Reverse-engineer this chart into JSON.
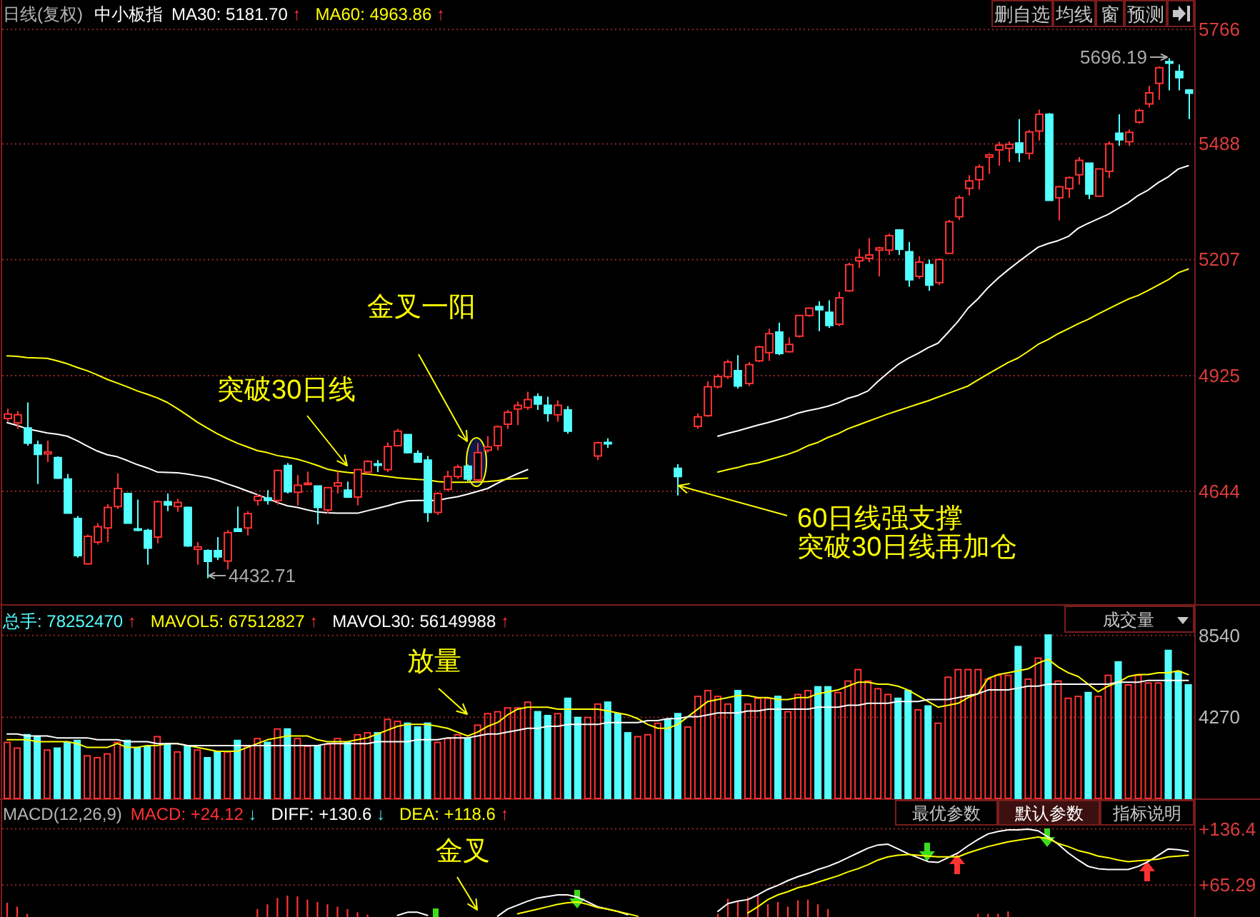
{
  "chart_data": [
    {
      "type": "candlestick",
      "title": "中小板指",
      "subtitle": "日线(复权)",
      "categories": [
        null,
        null,
        null,
        null,
        null,
        null,
        null,
        null,
        null,
        null,
        null,
        null,
        null,
        null,
        null,
        null,
        null,
        null,
        null,
        null,
        null,
        null,
        null,
        null,
        null,
        null,
        null,
        null,
        null,
        null,
        null,
        null,
        null,
        null,
        null,
        null,
        null,
        null,
        null,
        null,
        null,
        null,
        null,
        null,
        null,
        null,
        null,
        null,
        null,
        null,
        null,
        null,
        null,
        null,
        null,
        null,
        null,
        null,
        null,
        null,
        null,
        null,
        null,
        null,
        null,
        null,
        null,
        null,
        null,
        null,
        null,
        null,
        null,
        null,
        null,
        null,
        null,
        null,
        null,
        null,
        null,
        null,
        null,
        null,
        null,
        null,
        null,
        null,
        null,
        null,
        null,
        null,
        null,
        null,
        null,
        null,
        null,
        null,
        null,
        null,
        null,
        null,
        null,
        null,
        null,
        null,
        null,
        null,
        null,
        null,
        null,
        null,
        null,
        null,
        null,
        null,
        null,
        null,
        null
      ],
      "ohlc": [
        [
          4821,
          4845,
          4813,
          4832
        ],
        [
          4810,
          4839,
          4796,
          4830
        ],
        [
          4798,
          4860,
          4755,
          4761
        ],
        [
          4757,
          4767,
          4662,
          4734
        ],
        [
          4735,
          4767,
          4715,
          4740
        ],
        [
          4726,
          4729,
          4674,
          4676
        ],
        [
          4674,
          4686,
          4591,
          4591
        ],
        [
          4578,
          4584,
          4483,
          4488
        ],
        [
          4468,
          4539,
          4466,
          4535
        ],
        [
          4521,
          4567,
          4515,
          4558
        ],
        [
          4555,
          4613,
          4521,
          4605
        ],
        [
          4607,
          4688,
          4601,
          4651
        ],
        [
          4639,
          4640,
          4566,
          4567
        ],
        [
          4553,
          4624,
          4547,
          4550
        ],
        [
          4549,
          4553,
          4466,
          4506
        ],
        [
          4533,
          4622,
          4518,
          4619
        ],
        [
          4619,
          4639,
          4596,
          4611
        ],
        [
          4607,
          4626,
          4594,
          4617
        ],
        [
          4605,
          4607,
          4509,
          4512
        ],
        [
          4503,
          4521,
          4466,
          4509
        ],
        [
          4500,
          4503,
          4432.71,
          4474
        ],
        [
          4500,
          4533,
          4477,
          4485
        ],
        [
          4475,
          4550,
          4454,
          4544
        ],
        [
          4553,
          4607,
          4546,
          4547
        ],
        [
          4555,
          4596,
          4537,
          4590
        ],
        [
          4622,
          4637,
          4610,
          4632
        ],
        [
          4628,
          4647,
          4612,
          4622
        ],
        [
          4622,
          4697,
          4612,
          4695
        ],
        [
          4707,
          4713,
          4639,
          4643
        ],
        [
          4642,
          4684,
          4610,
          4659
        ],
        [
          4661,
          4692,
          4660,
          4664
        ],
        [
          4657,
          4657,
          4564,
          4605
        ],
        [
          4599,
          4654,
          4590,
          4653
        ],
        [
          4657,
          4692,
          4639,
          4665
        ],
        [
          4647,
          4668,
          4628,
          4630
        ],
        [
          4630,
          4697,
          4610,
          4697
        ],
        [
          4691,
          4720,
          4686,
          4717
        ],
        [
          4711,
          4720,
          4691,
          4709
        ],
        [
          4697,
          4763,
          4691,
          4753
        ],
        [
          4755,
          4796,
          4753,
          4790
        ],
        [
          4782,
          4782,
          4736,
          4738
        ],
        [
          4736,
          4744,
          4715,
          4715
        ],
        [
          4720,
          4730,
          4570,
          4593
        ],
        [
          4593,
          4642,
          4587,
          4639
        ],
        [
          4649,
          4694,
          4645,
          4680
        ],
        [
          4680,
          4709,
          4674,
          4703
        ],
        [
          4705,
          4709,
          4668,
          4674
        ],
        [
          4672,
          4761,
          4668,
          4738
        ],
        [
          4744,
          4778,
          4738,
          4752
        ],
        [
          4755,
          4804,
          4744,
          4801
        ],
        [
          4807,
          4842,
          4796,
          4836
        ],
        [
          4844,
          4862,
          4805,
          4853
        ],
        [
          4848,
          4886,
          4842,
          4867
        ],
        [
          4874,
          4882,
          4842,
          4856
        ],
        [
          4853,
          4874,
          4813,
          4833
        ],
        [
          4830,
          4865,
          4813,
          4853
        ],
        [
          4842,
          4851,
          4784,
          4790
        ],
        null,
        null,
        [
          4730,
          4765,
          4720,
          4762
        ],
        [
          4763,
          4773,
          4750,
          4760
        ],
        null,
        null,
        null,
        null,
        null,
        null,
        [
          4700,
          4710,
          4634,
          4680
        ],
        null,
        [
          4802,
          4833,
          4796,
          4825
        ],
        [
          4828,
          4911,
          4825,
          4898
        ],
        [
          4898,
          4929,
          4894,
          4923
        ],
        [
          4923,
          4964,
          4917,
          4958
        ],
        [
          4937,
          4975,
          4894,
          4900
        ],
        [
          4906,
          4958,
          4900,
          4952
        ],
        [
          4961,
          4998,
          4958,
          4995
        ],
        [
          4981,
          5039,
          4961,
          5027
        ],
        [
          5031,
          5054,
          4975,
          4979
        ],
        [
          4983,
          5018,
          4981,
          5001
        ],
        [
          5021,
          5073,
          5018,
          5071
        ],
        [
          5071,
          5091,
          5068,
          5089
        ],
        [
          5093,
          5106,
          5033,
          5085
        ],
        [
          5079,
          5108,
          5041,
          5047
        ],
        [
          5050,
          5129,
          5045,
          5114
        ],
        [
          5131,
          5199,
          5129,
          5195
        ],
        [
          5204,
          5233,
          5187,
          5212
        ],
        [
          5210,
          5259,
          5201,
          5218
        ],
        [
          5230,
          5238,
          5166,
          5235
        ],
        [
          5230,
          5270,
          5218,
          5265
        ],
        [
          5279,
          5279,
          5218,
          5232
        ],
        [
          5226,
          5250,
          5141,
          5158
        ],
        [
          5166,
          5215,
          5160,
          5201
        ],
        [
          5195,
          5207,
          5131,
          5145
        ],
        [
          5151,
          5210,
          5145,
          5207
        ],
        [
          5222,
          5303,
          5221,
          5299
        ],
        [
          5311,
          5363,
          5303,
          5357
        ],
        [
          5380,
          5412,
          5363,
          5398
        ],
        [
          5401,
          5438,
          5377,
          5432
        ],
        [
          5456,
          5465,
          5415,
          5461
        ],
        [
          5473,
          5493,
          5435,
          5485
        ],
        [
          5477,
          5494,
          5444,
          5487
        ],
        [
          5490,
          5548,
          5444,
          5467
        ],
        [
          5465,
          5522,
          5450,
          5517
        ],
        [
          5519,
          5571,
          5496,
          5560
        ],
        [
          5560,
          5563,
          5349,
          5351
        ],
        [
          5357,
          5386,
          5302,
          5384
        ],
        [
          5379,
          5409,
          5357,
          5406
        ],
        [
          5413,
          5456,
          5389,
          5448
        ],
        [
          5441,
          5441,
          5354,
          5366
        ],
        [
          5361,
          5429,
          5360,
          5427
        ],
        [
          5421,
          5494,
          5405,
          5488
        ],
        [
          5514,
          5560,
          5483,
          5498
        ],
        [
          5493,
          5523,
          5483,
          5516
        ],
        [
          5541,
          5574,
          5537,
          5569
        ],
        [
          5585,
          5629,
          5577,
          5612
        ],
        [
          5635,
          5676,
          5595,
          5673
        ],
        [
          5688,
          5696.19,
          5618,
          5684
        ],
        [
          5664,
          5681,
          5618,
          5649
        ],
        [
          5619,
          5619,
          5548,
          5611
        ]
      ],
      "colors": [
        "#ff3232",
        "#ff3232",
        "#54ffff",
        "#54ffff",
        "#ff3232",
        "#54ffff",
        "#54ffff",
        "#54ffff",
        "#ff3232",
        "#ff3232",
        "#ff3232",
        "#ff3232",
        "#54ffff",
        "#54ffff",
        "#54ffff",
        "#ff3232",
        "#54ffff",
        "#ff3232",
        "#54ffff",
        "#ff3232",
        "#54ffff",
        "#54ffff",
        "#ff3232",
        "#54ffff",
        "#ff3232",
        "#ff3232",
        "#54ffff",
        "#ff3232",
        "#54ffff",
        "#ff3232",
        "#ff3232",
        "#54ffff",
        "#ff3232",
        "#ff3232",
        "#54ffff",
        "#ff3232",
        "#ff3232",
        "#54ffff",
        "#ff3232",
        "#ff3232",
        "#54ffff",
        "#54ffff",
        "#54ffff",
        "#ff3232",
        "#ff3232",
        "#ff3232",
        "#54ffff",
        "#ff3232",
        "#ff3232",
        "#ff3232",
        "#ff3232",
        "#ff3232",
        "#ff3232",
        "#54ffff",
        "#54ffff",
        "#ff3232",
        "#54ffff",
        null,
        null,
        "#ff3232",
        "#54ffff",
        null,
        null,
        null,
        null,
        null,
        null,
        "#54ffff",
        null,
        "#ff3232",
        "#ff3232",
        "#ff3232",
        "#ff3232",
        "#54ffff",
        "#ff3232",
        "#ff3232",
        "#ff3232",
        "#54ffff",
        "#ff3232",
        "#ff3232",
        "#ff3232",
        "#54ffff",
        "#54ffff",
        "#ff3232",
        "#ff3232",
        "#ff3232",
        "#ff3232",
        "#ff3232",
        "#ff3232",
        "#54ffff",
        "#54ffff",
        "#ff3232",
        "#54ffff",
        "#ff3232",
        "#ff3232",
        "#ff3232",
        "#ff3232",
        "#ff3232",
        "#ff3232",
        "#ff3232",
        "#ff3232",
        "#54ffff",
        "#ff3232",
        "#ff3232",
        "#54ffff",
        "#ff3232",
        "#ff3232",
        "#ff3232",
        "#54ffff",
        "#ff3232",
        "#ff3232",
        "#54ffff",
        "#ff3232",
        "#ff3232",
        "#ff3232",
        "#ff3232",
        "#54ffff",
        "#54ffff",
        "#54ffff"
      ],
      "series": [
        {
          "name": "MA30: 5181.70↑",
          "type": "line",
          "color": "#ffffff",
          "values": [
            4811,
            4804,
            4796,
            4791,
            4786,
            4783,
            4778,
            4767,
            4754,
            4742,
            4733,
            4728,
            4719,
            4709,
            4701,
            4691,
            4690,
            4689,
            4686,
            4682,
            4678,
            4671,
            4662,
            4654,
            4645,
            4636,
            4627,
            4617,
            4609,
            4605,
            4599,
            4594,
            4592,
            4591,
            4591,
            4591,
            4597,
            4603,
            4609,
            4616,
            4621,
            4622,
            4622,
            4622,
            4627,
            4631,
            4637,
            4644,
            4651,
            4664,
            4676,
            4687,
            4697,
            null,
            null,
            null,
            null,
            null,
            null,
            null,
            null,
            null,
            null,
            null,
            null,
            null,
            null,
            null,
            null,
            null,
            null,
            4778,
            4785,
            4791,
            4798,
            4805,
            4811,
            4818,
            4825,
            4834,
            4840,
            4845,
            4851,
            4859,
            4870,
            4877,
            4888,
            4911,
            4932,
            4952,
            4967,
            4979,
            4993,
            5004,
            5030,
            5057,
            5089,
            5112,
            5139,
            5162,
            5182,
            5201,
            5219,
            5237,
            5246,
            5253,
            5263,
            5283,
            5295,
            5306,
            5317,
            5331,
            5345,
            5363,
            5376,
            5394,
            5408,
            5427,
            5435
          ]
        },
        {
          "name": "MA60: 4963.86↑",
          "type": "line",
          "color": "#ffff00",
          "values": [
            4973,
            4972,
            4969,
            4968,
            4967,
            4961,
            4954,
            4945,
            4937,
            4927,
            4916,
            4907,
            4898,
            4888,
            4880,
            4871,
            4860,
            4845,
            4829,
            4812,
            4798,
            4784,
            4772,
            4761,
            4752,
            4743,
            4738,
            4731,
            4727,
            4722,
            4715,
            4707,
            4698,
            4693,
            4690,
            4688,
            4686,
            4683,
            4680,
            4677,
            4675,
            4673,
            4672,
            4668,
            4666,
            4666,
            4666,
            4667,
            4668,
            4670,
            4674,
            4675,
            4676,
            null,
            null,
            null,
            null,
            null,
            null,
            null,
            null,
            null,
            null,
            null,
            null,
            null,
            null,
            null,
            null,
            null,
            null,
            4691,
            4697,
            4702,
            4709,
            4713,
            4720,
            4727,
            4734,
            4743,
            4755,
            4763,
            4775,
            4784,
            4796,
            4805,
            4814,
            4823,
            4832,
            4840,
            4848,
            4856,
            4864,
            4873,
            4882,
            4891,
            4900,
            4915,
            4929,
            4943,
            4957,
            4968,
            4984,
            5001,
            5013,
            5027,
            5039,
            5051,
            5062,
            5075,
            5087,
            5099,
            5111,
            5120,
            5132,
            5145,
            5158,
            5175,
            5184
          ]
        }
      ],
      "ylim": [
        4370,
        5775
      ],
      "yticks": [
        4644,
        4925,
        5207,
        5488,
        5766
      ],
      "grid": "y",
      "legend": "top left",
      "annotations": [
        "金叉一阳",
        "突破30日线",
        "60日线强支撑",
        "突破30日线再加仓",
        "4432.71",
        "5696.19",
        "删自选",
        "均线",
        "窗",
        "预测"
      ]
    },
    {
      "type": "bar",
      "categories": [
        null,
        null,
        null,
        null,
        null,
        null,
        null,
        null,
        null,
        null,
        null,
        null,
        null,
        null,
        null,
        null,
        null,
        null,
        null,
        null,
        null,
        null,
        null,
        null,
        null,
        null,
        null,
        null,
        null,
        null,
        null,
        null,
        null,
        null,
        null,
        null,
        null,
        null,
        null,
        null,
        null,
        null,
        null,
        null,
        null,
        null,
        null,
        null,
        null,
        null,
        null,
        null,
        null,
        null,
        null,
        null,
        null,
        null,
        null,
        null,
        null,
        null,
        null,
        null,
        null,
        null,
        null,
        null,
        null,
        null,
        null,
        null,
        null,
        null,
        null,
        null,
        null,
        null,
        null,
        null,
        null,
        null,
        null,
        null,
        null,
        null,
        null,
        null,
        null,
        null,
        null,
        null,
        null,
        null,
        null,
        null,
        null,
        null,
        null,
        null,
        null,
        null,
        null,
        null,
        null,
        null,
        null,
        null,
        null,
        null,
        null,
        null,
        null,
        null,
        null,
        null,
        null,
        null,
        null
      ],
      "series": [
        {
          "name": "总手: 78252470↑",
          "type": "bar",
          "color": "#54ffff",
          "colors": [
            "#ff3232",
            "#ff3232",
            "#54ffff",
            "#54ffff",
            "#ff3232",
            "#54ffff",
            "#54ffff",
            "#54ffff",
            "#ff3232",
            "#ff3232",
            "#ff3232",
            "#ff3232",
            "#54ffff",
            "#54ffff",
            "#54ffff",
            "#ff3232",
            "#54ffff",
            "#ff3232",
            "#54ffff",
            "#ff3232",
            "#54ffff",
            "#54ffff",
            "#ff3232",
            "#54ffff",
            "#ff3232",
            "#ff3232",
            "#54ffff",
            "#ff3232",
            "#54ffff",
            "#ff3232",
            "#ff3232",
            "#54ffff",
            "#ff3232",
            "#ff3232",
            "#54ffff",
            "#ff3232",
            "#ff3232",
            "#54ffff",
            "#ff3232",
            "#ff3232",
            "#54ffff",
            "#54ffff",
            "#54ffff",
            "#ff3232",
            "#ff3232",
            "#ff3232",
            "#54ffff",
            "#ff3232",
            "#ff3232",
            "#ff3232",
            "#ff3232",
            "#ff3232",
            "#ff3232",
            "#54ffff",
            "#54ffff",
            "#ff3232",
            "#54ffff",
            "#54ffff",
            "#ff3232",
            "#ff3232",
            "#54ffff",
            "#54ffff",
            "#54ffff",
            "#ff3232",
            "#ff3232",
            "#ff3232",
            "#54ffff",
            "#54ffff",
            "#ff3232",
            "#ff3232",
            "#ff3232",
            "#ff3232",
            "#ff3232",
            "#54ffff",
            "#ff3232",
            "#ff3232",
            "#ff3232",
            "#54ffff",
            "#ff3232",
            "#ff3232",
            "#ff3232",
            "#54ffff",
            "#54ffff",
            "#ff3232",
            "#ff3232",
            "#ff3232",
            "#ff3232",
            "#ff3232",
            "#ff3232",
            "#54ffff",
            "#54ffff",
            "#ff3232",
            "#54ffff",
            "#ff3232",
            "#ff3232",
            "#ff3232",
            "#ff3232",
            "#ff3232",
            "#ff3232",
            "#ff3232",
            "#ff3232",
            "#54ffff",
            "#ff3232",
            "#ff3232",
            "#54ffff",
            "#ff3232",
            "#ff3232",
            "#ff3232",
            "#54ffff",
            "#ff3232",
            "#ff3232",
            "#54ffff",
            "#ff3232",
            "#ff3232",
            "#ff3232",
            "#ff3232",
            "#54ffff",
            "#54ffff",
            "#54ffff"
          ],
          "values": [
            3000,
            2700,
            3400,
            3300,
            2600,
            2700,
            3000,
            3100,
            2300,
            2200,
            2400,
            3000,
            3100,
            2700,
            2800,
            3300,
            2900,
            2500,
            2800,
            2600,
            2200,
            2500,
            2500,
            3100,
            2800,
            3200,
            3000,
            3700,
            3700,
            3200,
            2800,
            2800,
            2900,
            3200,
            3000,
            3400,
            3500,
            3500,
            4200,
            4100,
            4000,
            3800,
            4000,
            3000,
            3200,
            3400,
            3200,
            3900,
            4500,
            4600,
            4800,
            4800,
            5100,
            4600,
            4400,
            4500,
            5300,
            4300,
            4300,
            5000,
            5100,
            4500,
            3500,
            3300,
            3400,
            4000,
            4200,
            4500,
            3800,
            5400,
            5700,
            5400,
            5000,
            5700,
            5000,
            5300,
            5300,
            5400,
            4600,
            5500,
            5700,
            5900,
            5900,
            5600,
            6200,
            6800,
            6200,
            5800,
            5500,
            5300,
            5700,
            4700,
            4900,
            4000,
            6400,
            6800,
            6800,
            6800,
            6300,
            6500,
            6500,
            8000,
            6300,
            7400,
            8600,
            6200,
            5300,
            5400,
            5600,
            5400,
            6500,
            7200,
            6000,
            6500,
            6100,
            6100,
            7800,
            6700,
            6000
          ]
        },
        {
          "name": "MAVOL5: 67512827↑",
          "type": "line",
          "color": "#ffff00",
          "values": [
            3100,
            3100,
            3100,
            3000,
            3000,
            3000,
            3000,
            2900,
            2700,
            2700,
            2700,
            2900,
            2700,
            2700,
            2800,
            2800,
            2900,
            2900,
            2800,
            2700,
            2600,
            2500,
            2500,
            2500,
            2700,
            2900,
            3100,
            3200,
            3300,
            3300,
            3300,
            3100,
            3000,
            3000,
            3000,
            3100,
            3200,
            3400,
            3600,
            3800,
            3900,
            3900,
            3900,
            3800,
            3700,
            3500,
            3300,
            3500,
            3800,
            4000,
            4400,
            4700,
            4800,
            4800,
            4800,
            4700,
            4700,
            4700,
            4700,
            4700,
            4600,
            4500,
            4400,
            4200,
            3900,
            3700,
            3700,
            3900,
            4300,
            4700,
            5100,
            5200,
            5300,
            5400,
            5400,
            5300,
            5300,
            5200,
            5200,
            5300,
            5300,
            5500,
            5600,
            5700,
            5900,
            6100,
            6100,
            6000,
            6000,
            5900,
            5700,
            5400,
            5100,
            4800,
            4900,
            5000,
            5300,
            5500,
            6300,
            6500,
            6600,
            6700,
            6800,
            7100,
            7300,
            6900,
            6600,
            6400,
            6000,
            5600,
            5900,
            6100,
            6400,
            6500,
            6500,
            6600,
            6600,
            6700,
            6500
          ]
        },
        {
          "name": "MAVOL30: 56149988↑",
          "type": "line",
          "color": "#ffffff",
          "values": [
            3400,
            3400,
            3300,
            3300,
            3300,
            3200,
            3200,
            3200,
            3200,
            3100,
            3100,
            3100,
            3000,
            3000,
            3000,
            2900,
            2900,
            2900,
            2800,
            2800,
            2800,
            2800,
            2800,
            2800,
            2800,
            2800,
            2800,
            2800,
            2800,
            2800,
            2800,
            2800,
            2900,
            2900,
            2900,
            2900,
            2900,
            3000,
            3000,
            3000,
            3000,
            3100,
            3100,
            3100,
            3200,
            3200,
            3200,
            3300,
            3400,
            3400,
            3500,
            3600,
            3700,
            3700,
            3800,
            3800,
            3900,
            3900,
            3900,
            3900,
            4000,
            4000,
            4000,
            4000,
            4100,
            4100,
            4200,
            4200,
            4300,
            4300,
            4400,
            4500,
            4500,
            4500,
            4600,
            4600,
            4700,
            4700,
            4700,
            4700,
            4700,
            4800,
            4800,
            4800,
            4900,
            4900,
            5000,
            5000,
            5000,
            5100,
            5100,
            5100,
            5200,
            5200,
            5200,
            5300,
            5400,
            5500,
            5700,
            5700,
            5700,
            5800,
            5900,
            5900,
            6000,
            6000,
            6000,
            6000,
            6000,
            6000,
            6000,
            6100,
            6100,
            6100,
            6200,
            6200,
            6200,
            6200,
            6200
          ]
        }
      ],
      "ylim": [
        0,
        10100
      ],
      "yticks": [
        4270,
        8540
      ],
      "grid": "y",
      "legend": "top left",
      "annotations": [
        "放量",
        "成交量"
      ]
    },
    {
      "type": "bar",
      "title": "MACD(12,26,9)",
      "categories": [
        null,
        null,
        null,
        null,
        null,
        null,
        null,
        null,
        null,
        null,
        null,
        null,
        null,
        null,
        null,
        null,
        null,
        null,
        null,
        null,
        null,
        null,
        null,
        null,
        null,
        null,
        null,
        null,
        null,
        null,
        null,
        null,
        null,
        null,
        null,
        null,
        null,
        null,
        null,
        null,
        null,
        null,
        null,
        null,
        null,
        null,
        null,
        null,
        null,
        null,
        null,
        null,
        null,
        null,
        null,
        null,
        null,
        null,
        null,
        null,
        null,
        null,
        null,
        null,
        null,
        null,
        null,
        null,
        null,
        null,
        null,
        null,
        null,
        null,
        null,
        null,
        null,
        null,
        null,
        null,
        null,
        null,
        null,
        null,
        null,
        null,
        null,
        null,
        null,
        null,
        null,
        null,
        null,
        null,
        null,
        null,
        null,
        null,
        null,
        null,
        null,
        null,
        null,
        null,
        null,
        null,
        null,
        null,
        null,
        null,
        null,
        null,
        null,
        null,
        null,
        null,
        null,
        null,
        null
      ],
      "series": [
        {
          "name": "MACD: +24.12↓",
          "type": "bar",
          "color": "#ff3232",
          "values": [
            43,
            38,
            29,
            null,
            null,
            null,
            null,
            null,
            null,
            null,
            null,
            null,
            null,
            null,
            null,
            null,
            null,
            null,
            null,
            null,
            null,
            null,
            null,
            null,
            null,
            35,
            41,
            49,
            52,
            51,
            47,
            44,
            41,
            38,
            35,
            31,
            28,
            null,
            null,
            null,
            null,
            null,
            null,
            null,
            null,
            null,
            null,
            null,
            null,
            null,
            null,
            null,
            null,
            null,
            null,
            null,
            null,
            null,
            null,
            null,
            null,
            null,
            null,
            null,
            null,
            null,
            null,
            null,
            null,
            null,
            null,
            29,
            48,
            44,
            50,
            53,
            41,
            44,
            38,
            46,
            47,
            41,
            35,
            null,
            null,
            null,
            null,
            null,
            null,
            null,
            null,
            null,
            null,
            null,
            null,
            null,
            null,
            29,
            29,
            29,
            32,
            null,
            null,
            null,
            null,
            null,
            null,
            null,
            null,
            null,
            null,
            null,
            null,
            null,
            null,
            null,
            null,
            null,
            null
          ]
        },
        {
          "name": "DIFF: +130.6↓",
          "type": "line",
          "color": "#ffffff",
          "values": [
            null,
            null,
            null,
            null,
            null,
            null,
            null,
            null,
            null,
            null,
            null,
            null,
            null,
            null,
            null,
            null,
            null,
            null,
            null,
            null,
            null,
            null,
            null,
            null,
            null,
            null,
            null,
            null,
            null,
            null,
            null,
            null,
            null,
            null,
            null,
            null,
            null,
            null,
            null,
            27,
            31,
            31,
            27,
            null,
            null,
            null,
            null,
            null,
            null,
            26,
            35,
            40,
            45,
            49,
            51,
            53,
            53,
            50,
            44,
            38,
            35,
            32,
            28,
            null,
            null,
            null,
            null,
            null,
            null,
            null,
            null,
            32,
            42,
            45,
            47,
            53,
            60,
            65,
            71,
            76,
            80,
            85,
            89,
            94,
            100,
            106,
            112,
            116,
            117,
            111,
            105,
            100,
            95,
            94,
            100,
            106,
            115,
            123,
            130,
            133,
            135,
            135,
            136,
            134,
            126,
            117,
            106,
            97,
            89,
            86,
            85,
            85,
            85,
            89,
            95,
            103,
            111,
            110,
            108
          ]
        },
        {
          "name": "DEA: +118.6↑",
          "type": "line",
          "color": "#ffff00",
          "values": [
            null,
            null,
            null,
            null,
            null,
            null,
            null,
            null,
            null,
            null,
            null,
            null,
            null,
            null,
            null,
            null,
            null,
            null,
            null,
            null,
            null,
            null,
            null,
            null,
            null,
            null,
            null,
            null,
            null,
            null,
            null,
            null,
            null,
            null,
            null,
            null,
            null,
            null,
            null,
            null,
            null,
            null,
            null,
            null,
            null,
            null,
            null,
            null,
            null,
            null,
            null,
            29,
            32,
            35,
            38,
            41,
            43,
            44,
            41,
            37,
            35,
            32,
            29,
            26,
            null,
            null,
            null,
            null,
            null,
            null,
            null,
            null,
            null,
            null,
            30,
            38,
            47,
            53,
            57,
            62,
            65,
            69,
            73,
            77,
            82,
            86,
            91,
            97,
            101,
            103,
            104,
            103,
            102,
            101,
            101,
            101,
            106,
            110,
            114,
            117,
            120,
            122,
            124,
            126,
            124,
            118,
            114,
            109,
            106,
            102,
            100,
            97,
            95,
            96,
            97,
            98,
            101,
            102,
            103
          ]
        }
      ],
      "ylim": [
        25,
        173
      ],
      "yticks": [
        {
          "value": 65.29,
          "label": "+65.29"
        },
        {
          "value": 136.4,
          "label": "+136.4"
        }
      ],
      "grid": "y",
      "legend": "top left",
      "annotations": [
        "金叉",
        "最优参数",
        "默认参数",
        "指标说明"
      ]
    }
  ]
}
